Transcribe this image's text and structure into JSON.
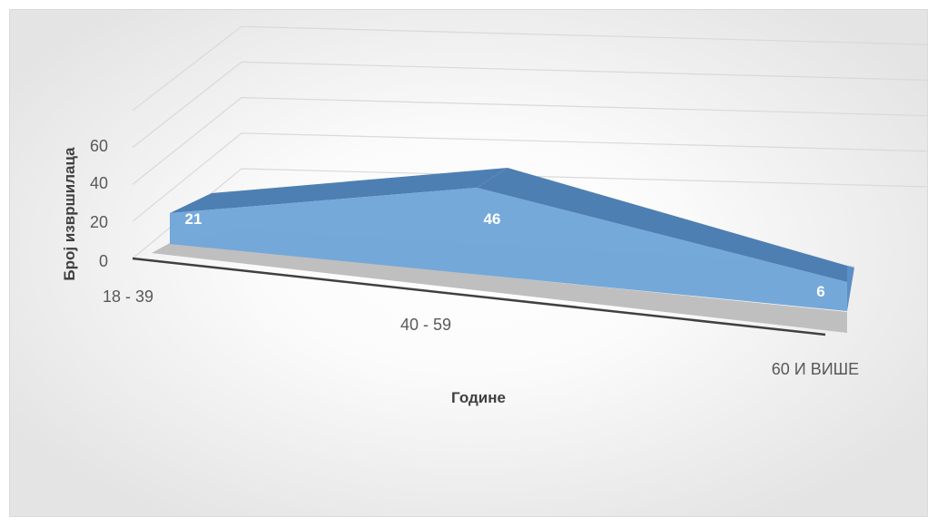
{
  "chart_data": {
    "type": "area",
    "subtype": "3d-area",
    "title": "",
    "xlabel": "Године",
    "ylabel": "Број извршилаца",
    "categories": [
      "18 - 39",
      "40 - 59",
      "60 И ВИШЕ"
    ],
    "values": [
      21,
      46,
      6
    ],
    "data_labels": [
      "21",
      "46",
      "6"
    ],
    "y_ticks": [
      "0",
      "20",
      "40",
      "60"
    ],
    "ylim": [
      0,
      80
    ],
    "grid": true,
    "legend": "none",
    "colors": {
      "area_front": "#6ea4d8",
      "area_top": "#4e7fb3",
      "area_side": "#5b8fc6",
      "floor": "#bfbfbf",
      "gridline": "#d9d9d9",
      "axis_line": "#404040"
    }
  }
}
